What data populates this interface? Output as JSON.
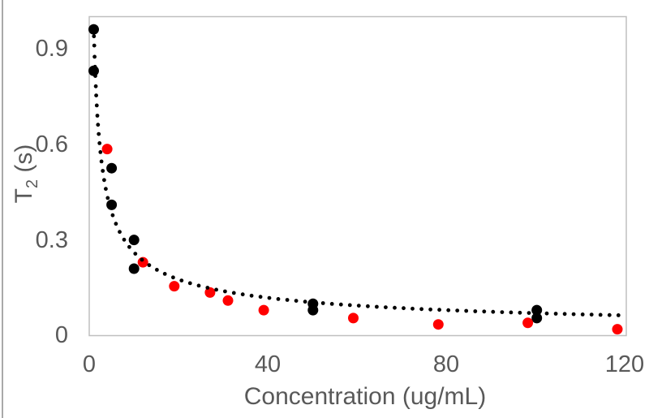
{
  "chart_data": {
    "type": "scatter",
    "xlabel": "Concentration (ug/mL)",
    "ylabel": "T2 (s)",
    "ylabel_parts": {
      "base": "T",
      "sub": "2",
      "unit": " (s)"
    },
    "xlim": [
      0,
      120
    ],
    "ylim": [
      0,
      1.0
    ],
    "x_ticks": [
      "0",
      "40",
      "80",
      "120"
    ],
    "x_tick_values": [
      0,
      40,
      80,
      120
    ],
    "y_ticks": [
      "0",
      "0.3",
      "0.6",
      "0.9"
    ],
    "y_tick_values": [
      0,
      0.3,
      0.6,
      0.9
    ],
    "grid": false,
    "legend_position": "none",
    "series": [
      {
        "name": "black-series",
        "color": "#000000",
        "marker": "circle",
        "points": [
          [
            1,
            0.96
          ],
          [
            1,
            0.83
          ],
          [
            5,
            0.525
          ],
          [
            5,
            0.41
          ],
          [
            10,
            0.3
          ],
          [
            10,
            0.21
          ],
          [
            50,
            0.1
          ],
          [
            50,
            0.08
          ],
          [
            100,
            0.08
          ],
          [
            100,
            0.055
          ]
        ]
      },
      {
        "name": "red-series",
        "color": "#ff0000",
        "marker": "circle",
        "points": [
          [
            4,
            0.585
          ],
          [
            12,
            0.23
          ],
          [
            19,
            0.155
          ],
          [
            27,
            0.135
          ],
          [
            31,
            0.11
          ],
          [
            39,
            0.08
          ],
          [
            59,
            0.055
          ],
          [
            78,
            0.035
          ],
          [
            98,
            0.04
          ],
          [
            118,
            0.02
          ]
        ]
      }
    ],
    "trendline": {
      "style": "dotted",
      "color": "#000000",
      "model": "power",
      "a": 0.97,
      "b": -0.57,
      "x_range": [
        1,
        120
      ]
    }
  },
  "colors": {
    "text": "#595959",
    "plot_border": "#bfbfbf",
    "chart_left_edge": "#a9a9a9",
    "background": "#ffffff"
  }
}
